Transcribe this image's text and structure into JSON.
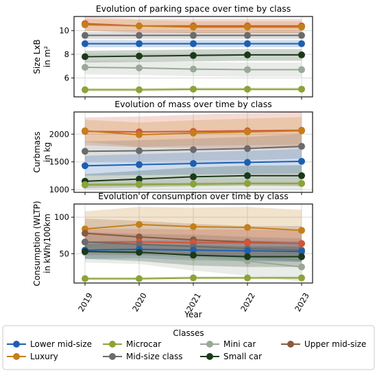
{
  "legend": {
    "title": "Classes"
  },
  "colors": {
    "Lower mid-size": "#1f5fb0",
    "Luxury": "#c47f1a",
    "Microcar": "#8ca33a",
    "Mid-size class": "#6b6b6b",
    "Mini car": "#9aa898",
    "Small car": "#1a3a1a",
    "Upper mid-size": "#8a5a3c",
    "Top": "#d2553a"
  },
  "chart_data": [
    {
      "type": "line",
      "title": "Evolution of parking space over time by class",
      "ylabel": [
        "Size LxB",
        "in m²"
      ],
      "x": [
        2019,
        2020,
        2021,
        2022,
        2023
      ],
      "ylim": [
        4.4,
        11.2
      ],
      "yticks": [
        6,
        8,
        10
      ],
      "series": [
        {
          "key": "Top",
          "values": [
            10.6,
            10.4,
            10.4,
            10.4,
            10.4
          ],
          "band": [
            0.6,
            0.6,
            0.6,
            0.6,
            0.6
          ]
        },
        {
          "key": "Luxury",
          "values": [
            10.5,
            10.4,
            10.3,
            10.3,
            10.3
          ],
          "band": [
            0.5,
            0.5,
            0.5,
            0.5,
            0.5
          ]
        },
        {
          "key": "Mid-size class",
          "values": [
            9.6,
            9.6,
            9.6,
            9.6,
            9.6
          ],
          "band": [
            0.3,
            0.3,
            0.3,
            0.3,
            0.3
          ]
        },
        {
          "key": "Lower mid-size",
          "values": [
            8.9,
            8.9,
            8.9,
            8.9,
            8.9
          ],
          "band": [
            0.3,
            0.3,
            0.3,
            0.3,
            0.3
          ]
        },
        {
          "key": "Small car",
          "values": [
            7.8,
            7.85,
            7.9,
            7.95,
            7.95
          ],
          "band": [
            0.5,
            0.5,
            0.5,
            0.5,
            0.5
          ]
        },
        {
          "key": "Mini car",
          "values": [
            6.9,
            6.85,
            6.75,
            6.7,
            6.7
          ],
          "band": [
            0.6,
            0.6,
            0.6,
            0.6,
            0.6
          ]
        },
        {
          "key": "Microcar",
          "values": [
            5.0,
            5.0,
            5.05,
            5.05,
            5.05
          ],
          "band": [
            0.15,
            0.15,
            0.15,
            0.15,
            0.15
          ]
        }
      ]
    },
    {
      "type": "line",
      "title": "Evolution of mass over time by class",
      "ylabel": [
        "Curbmass",
        "in kg"
      ],
      "x": [
        2019,
        2020,
        2021,
        2022,
        2023
      ],
      "ylim": [
        950,
        2400
      ],
      "yticks": [
        1000,
        1500,
        2000
      ],
      "series": [
        {
          "key": "Top",
          "values": [
            2050,
            2040,
            2050,
            2060,
            2070
          ],
          "band": [
            250,
            280,
            300,
            320,
            330
          ]
        },
        {
          "key": "Luxury",
          "values": [
            2060,
            1990,
            2020,
            2040,
            2060
          ],
          "band": [
            200,
            220,
            230,
            240,
            250
          ]
        },
        {
          "key": "Mid-size class",
          "values": [
            1690,
            1700,
            1720,
            1740,
            1780
          ],
          "band": [
            180,
            190,
            200,
            210,
            220
          ]
        },
        {
          "key": "Lower mid-size",
          "values": [
            1430,
            1450,
            1470,
            1490,
            1510
          ],
          "band": [
            180,
            190,
            200,
            210,
            220
          ]
        },
        {
          "key": "Small car",
          "values": [
            1150,
            1190,
            1230,
            1250,
            1250
          ],
          "band": [
            130,
            150,
            170,
            180,
            190
          ]
        },
        {
          "key": "Mini car",
          "values": [
            1080,
            1085,
            1100,
            1110,
            1110
          ],
          "band": [
            80,
            90,
            100,
            110,
            120
          ]
        },
        {
          "key": "Microcar",
          "values": [
            1090,
            1095,
            1100,
            1110,
            1110
          ],
          "band": [
            30,
            30,
            30,
            30,
            30
          ]
        }
      ]
    },
    {
      "type": "line",
      "title": "Evolution of consumption over time by class",
      "ylabel": [
        "Consumption (WLTP)",
        "in kWh/100km"
      ],
      "x": [
        2019,
        2020,
        2021,
        2022,
        2023
      ],
      "ylim": [
        10,
        118
      ],
      "yticks": [
        50,
        100
      ],
      "series": [
        {
          "key": "Luxury",
          "values": [
            84,
            90,
            87,
            86,
            82
          ],
          "band": [
            24,
            24,
            26,
            28,
            28
          ]
        },
        {
          "key": "Upper mid-size",
          "values": [
            78,
            73,
            69,
            66,
            64
          ],
          "band": [
            20,
            22,
            22,
            22,
            24
          ]
        },
        {
          "key": "Top",
          "values": [
            66,
            66,
            65,
            65,
            64
          ],
          "band": [
            18,
            18,
            18,
            18,
            18
          ]
        },
        {
          "key": "Mid-size class",
          "values": [
            66,
            63,
            60,
            57,
            55
          ],
          "band": [
            14,
            14,
            16,
            16,
            16
          ]
        },
        {
          "key": "Lower mid-size",
          "values": [
            55,
            56,
            55,
            54,
            53
          ],
          "band": [
            12,
            12,
            14,
            14,
            14
          ]
        },
        {
          "key": "Mini car",
          "values": [
            52,
            52,
            45,
            40,
            32
          ],
          "band": [
            14,
            16,
            18,
            20,
            20
          ]
        },
        {
          "key": "Small car",
          "values": [
            53,
            52,
            48,
            46,
            46
          ],
          "band": [
            10,
            12,
            14,
            14,
            14
          ]
        },
        {
          "key": "Microcar",
          "values": [
            16,
            16,
            17,
            17,
            17
          ],
          "band": [
            2,
            2,
            2,
            2,
            2
          ]
        }
      ]
    }
  ],
  "xaxis": {
    "label": "Year",
    "ticks": [
      "2019",
      "2020",
      "2021",
      "2022",
      "2023"
    ]
  },
  "legend_items": [
    {
      "label": "Lower mid-size",
      "key": "Lower mid-size"
    },
    {
      "label": "Microcar",
      "key": "Microcar"
    },
    {
      "label": "Mini car",
      "key": "Mini car"
    },
    {
      "label": "Upper mid-size",
      "key": "Upper mid-size"
    },
    {
      "label": "Luxury",
      "key": "Luxury"
    },
    {
      "label": "Mid-size class",
      "key": "Mid-size class"
    },
    {
      "label": "Small car",
      "key": "Small car"
    }
  ]
}
